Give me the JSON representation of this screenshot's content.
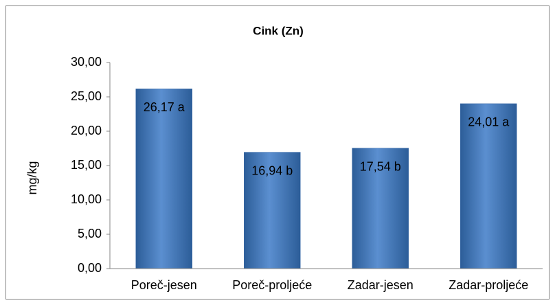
{
  "chart_data": {
    "type": "bar",
    "title": "Cink (Zn)",
    "y_label": "mg/kg",
    "categories": [
      "Poreč-jesen",
      "Poreč-proljeće",
      "Zadar-jesen",
      "Zadar-proljeće"
    ],
    "values": [
      26.17,
      16.94,
      17.54,
      24.01
    ],
    "value_labels": [
      "26,17 a",
      "16,94 b",
      "17,54 b",
      "24,01 a"
    ],
    "color": "#4a7ebb",
    "ylim": [
      0,
      30
    ],
    "yticks": [
      {
        "value": 0,
        "label": "0,00"
      },
      {
        "value": 5,
        "label": "5,00"
      },
      {
        "value": 10,
        "label": "10,00"
      },
      {
        "value": 15,
        "label": "15,00"
      },
      {
        "value": 20,
        "label": "20,00"
      },
      {
        "value": 25,
        "label": "25,00"
      },
      {
        "value": 30,
        "label": "30,00"
      }
    ],
    "grid": false
  }
}
